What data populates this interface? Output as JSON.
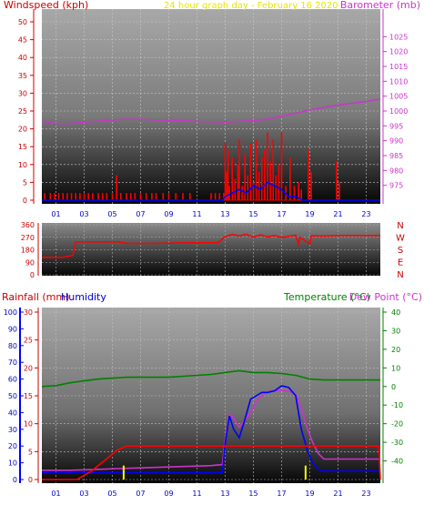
{
  "page": {
    "title": "24 hour graph day - February 16 2020"
  },
  "chart_data": [
    {
      "type": "line",
      "title": "24 hour graph day - February 16 2020",
      "left_axis_label": "Windspeed (kph)",
      "right_axis_label": "Barometer (mb)",
      "x_ticks": [
        "01",
        "03",
        "05",
        "07",
        "09",
        "11",
        "13",
        "15",
        "17",
        "19",
        "21",
        "23"
      ],
      "xlim": [
        0,
        24
      ],
      "left_ylim": [
        0,
        50
      ],
      "left_ticks": [
        "0",
        "5",
        "10",
        "15",
        "20",
        "25",
        "30",
        "35",
        "40",
        "45",
        "50"
      ],
      "right_ylim": [
        970,
        1030
      ],
      "right_ticks": [
        "975",
        "980",
        "985",
        "990",
        "995",
        "1000",
        "1005",
        "1010",
        "1015",
        "1020",
        "1025"
      ],
      "colors": {
        "wind": "#ff0000",
        "gust": "#ff0000",
        "barometer": "#cc33cc",
        "wind_avg": "#0000ff"
      },
      "series": [
        {
          "name": "",
          "key": "barometer",
          "axis": "right",
          "x": [
            0,
            1,
            2,
            3,
            4,
            5,
            6,
            7,
            8,
            9,
            10,
            11,
            12,
            13,
            14,
            15,
            16,
            17,
            18,
            19,
            20,
            21,
            22,
            23,
            24
          ],
          "values": [
            996.5,
            995.8,
            995.8,
            996.2,
            996.6,
            997.0,
            997.2,
            997.2,
            997.0,
            996.9,
            996.7,
            996.5,
            996.4,
            996.3,
            996.5,
            996.8,
            997.3,
            998.3,
            999.3,
            1000.4,
            1001.2,
            1002.0,
            1002.6,
            1003.2,
            1004.0
          ]
        },
        {
          "name": "",
          "key": "wind",
          "axis": "left",
          "style": "spikes",
          "x": [
            0.2,
            0.6,
            0.9,
            1.2,
            1.5,
            1.8,
            2.1,
            2.4,
            2.7,
            3.0,
            3.3,
            3.6,
            4.0,
            4.3,
            4.6,
            5.0,
            5.3,
            5.6,
            6.0,
            6.3,
            6.6,
            7.0,
            7.4,
            7.8,
            8.1,
            8.6,
            9.0,
            9.5,
            10.0,
            10.5,
            12.0,
            12.3,
            12.6,
            12.9,
            13.0,
            13.1,
            13.2,
            13.3,
            13.5,
            13.7,
            13.9,
            14.0,
            14.2,
            14.4,
            14.6,
            14.8,
            15.0,
            15.2,
            15.4,
            15.6,
            15.8,
            16.0,
            16.2,
            16.4,
            16.6,
            16.8,
            17.0,
            17.3,
            17.6,
            17.9,
            18.2,
            18.4,
            18.9,
            19.1,
            20.9,
            21.1
          ],
          "values": [
            2,
            2,
            2,
            2,
            2,
            2,
            2,
            2,
            2,
            2,
            2,
            2,
            2,
            2,
            2,
            2,
            7,
            2,
            2,
            2,
            2,
            2,
            2,
            2,
            2,
            2,
            2,
            2,
            2,
            2,
            2,
            2,
            2,
            2,
            16,
            8,
            14,
            4,
            12,
            6,
            10,
            17,
            4,
            13,
            7,
            16,
            5,
            17,
            8,
            12,
            14,
            19,
            11,
            17,
            7,
            10,
            19,
            4,
            12,
            4,
            5,
            3,
            14,
            8,
            11,
            5
          ]
        },
        {
          "name": "",
          "key": "wind_avg",
          "axis": "left",
          "x": [
            0,
            12.8,
            13.0,
            13.5,
            14.0,
            14.5,
            15.0,
            15.5,
            16.0,
            16.5,
            17.0,
            17.5,
            18.0,
            18.5,
            19.0,
            24
          ],
          "values": [
            0,
            0,
            1,
            2,
            3,
            2,
            4,
            3,
            5,
            4,
            3,
            1,
            1,
            0,
            0,
            0
          ]
        }
      ]
    },
    {
      "type": "line",
      "left_axis_label": "",
      "x_ticks": [],
      "xlim": [
        0,
        24
      ],
      "left_ylim": [
        0,
        360
      ],
      "left_ticks": [
        "0",
        "90",
        "180",
        "270",
        "360"
      ],
      "right_labels": [
        "N",
        "W",
        "S",
        "E",
        "N"
      ],
      "colors": {
        "direction": "#ff0000"
      },
      "series": [
        {
          "name": "",
          "key": "direction",
          "axis": "left",
          "x": [
            0,
            1.5,
            2.2,
            2.4,
            5.5,
            6.0,
            8.0,
            10.0,
            12.5,
            13.0,
            13.5,
            14.0,
            14.5,
            15.0,
            15.5,
            16.0,
            16.5,
            17.0,
            17.5,
            18.0,
            18.2,
            18.3,
            19.0,
            19.1,
            20.0,
            21.0,
            22.0,
            23.0,
            24.0
          ],
          "values": [
            125,
            125,
            140,
            236,
            236,
            226,
            226,
            230,
            232,
            275,
            290,
            280,
            292,
            270,
            288,
            272,
            282,
            268,
            276,
            284,
            220,
            270,
            222,
            280,
            278,
            282,
            282,
            282,
            282
          ]
        }
      ]
    },
    {
      "type": "line",
      "left_axis_label": "Rainfall (mm)",
      "left_axis_label_2": "Humidity",
      "right_axis_label": "Temperature (°C)",
      "right_axis_label_2": "Dew Point (°C)",
      "x_ticks": [
        "01",
        "03",
        "05",
        "07",
        "09",
        "11",
        "13",
        "15",
        "17",
        "19",
        "21",
        "23"
      ],
      "xlim": [
        0,
        24
      ],
      "humidity_ylim": [
        0,
        100
      ],
      "humidity_ticks": [
        "0",
        "10",
        "20",
        "30",
        "40",
        "50",
        "60",
        "70",
        "80",
        "90",
        "100"
      ],
      "rain_ylim": [
        0,
        30
      ],
      "rain_ticks": [
        "0",
        "5",
        "10",
        "15",
        "20",
        "25",
        "30"
      ],
      "temp_ylim": [
        -50,
        40
      ],
      "temp_ticks": [
        "-40",
        "-30",
        "-20",
        "-10",
        "0",
        "10",
        "20",
        "30",
        "40"
      ],
      "colors": {
        "humidity": "#0000ff",
        "rain": "#ff0000",
        "temperature": "#008000",
        "dewpoint": "#cc33cc",
        "rain_rate": "#ffff00"
      },
      "series": [
        {
          "name": "",
          "key": "temperature",
          "axis": "temp",
          "x": [
            0,
            1,
            2,
            3,
            4,
            5,
            6,
            7,
            8,
            9,
            10,
            11,
            12,
            13,
            14,
            15,
            16,
            17,
            18,
            19,
            20,
            21,
            22,
            23,
            24
          ],
          "values": [
            0,
            0.5,
            2,
            3,
            4,
            4.5,
            5,
            5,
            5,
            5,
            5.5,
            6,
            6.5,
            7.5,
            8.5,
            7.5,
            7.5,
            7,
            6,
            4,
            3.5,
            3.5,
            3.5,
            3.5,
            3.5
          ]
        },
        {
          "name": "",
          "key": "dewpoint",
          "axis": "temp",
          "x": [
            0,
            2,
            4,
            6,
            8,
            10,
            12,
            12.8,
            13.0,
            13.3,
            13.6,
            14.0,
            14.4,
            14.8,
            15.2,
            15.6,
            16.0,
            16.5,
            17.0,
            17.5,
            18.0,
            18.4,
            18.8,
            19.2,
            19.6,
            20,
            22,
            24
          ],
          "values": [
            -45,
            -45,
            -44.5,
            -44,
            -43.5,
            -43,
            -42.5,
            -42,
            -28,
            -15,
            -17,
            -22,
            -18,
            -14,
            -8,
            -5,
            -3,
            -2,
            -2,
            -2.5,
            -4,
            -12,
            -22,
            -30,
            -36,
            -39,
            -39,
            -39
          ]
        },
        {
          "name": "",
          "key": "humidity",
          "axis": "humidity",
          "x": [
            0,
            2,
            4,
            6,
            8,
            10,
            12,
            12.8,
            13.0,
            13.3,
            13.6,
            14.0,
            14.4,
            14.8,
            15.2,
            15.6,
            16.0,
            16.5,
            17.0,
            17.5,
            18.0,
            18.4,
            18.8,
            19.2,
            19.6,
            20,
            22,
            24
          ],
          "values": [
            4,
            4,
            4,
            4,
            4,
            4,
            4,
            4,
            22,
            38,
            30,
            25,
            36,
            48,
            50,
            52,
            52,
            53,
            56,
            55,
            50,
            30,
            18,
            10,
            6,
            5,
            5,
            5
          ]
        },
        {
          "name": "",
          "key": "rain",
          "axis": "rain",
          "x": [
            0,
            2.5,
            3.5,
            4.5,
            5.3,
            6.0,
            8.0,
            10.0,
            12.0,
            12.8,
            13.0,
            20.0,
            23.9,
            24.0
          ],
          "values": [
            0,
            0,
            1.5,
            3.5,
            5.2,
            6.0,
            6.0,
            6.0,
            6.0,
            6.0,
            6.0,
            6.0,
            6.0,
            0
          ]
        },
        {
          "name": "",
          "key": "rain_rate",
          "axis": "rain",
          "style": "spikes",
          "x": [
            5.8,
            18.7
          ],
          "values": [
            2.5,
            2.5
          ]
        }
      ]
    }
  ]
}
